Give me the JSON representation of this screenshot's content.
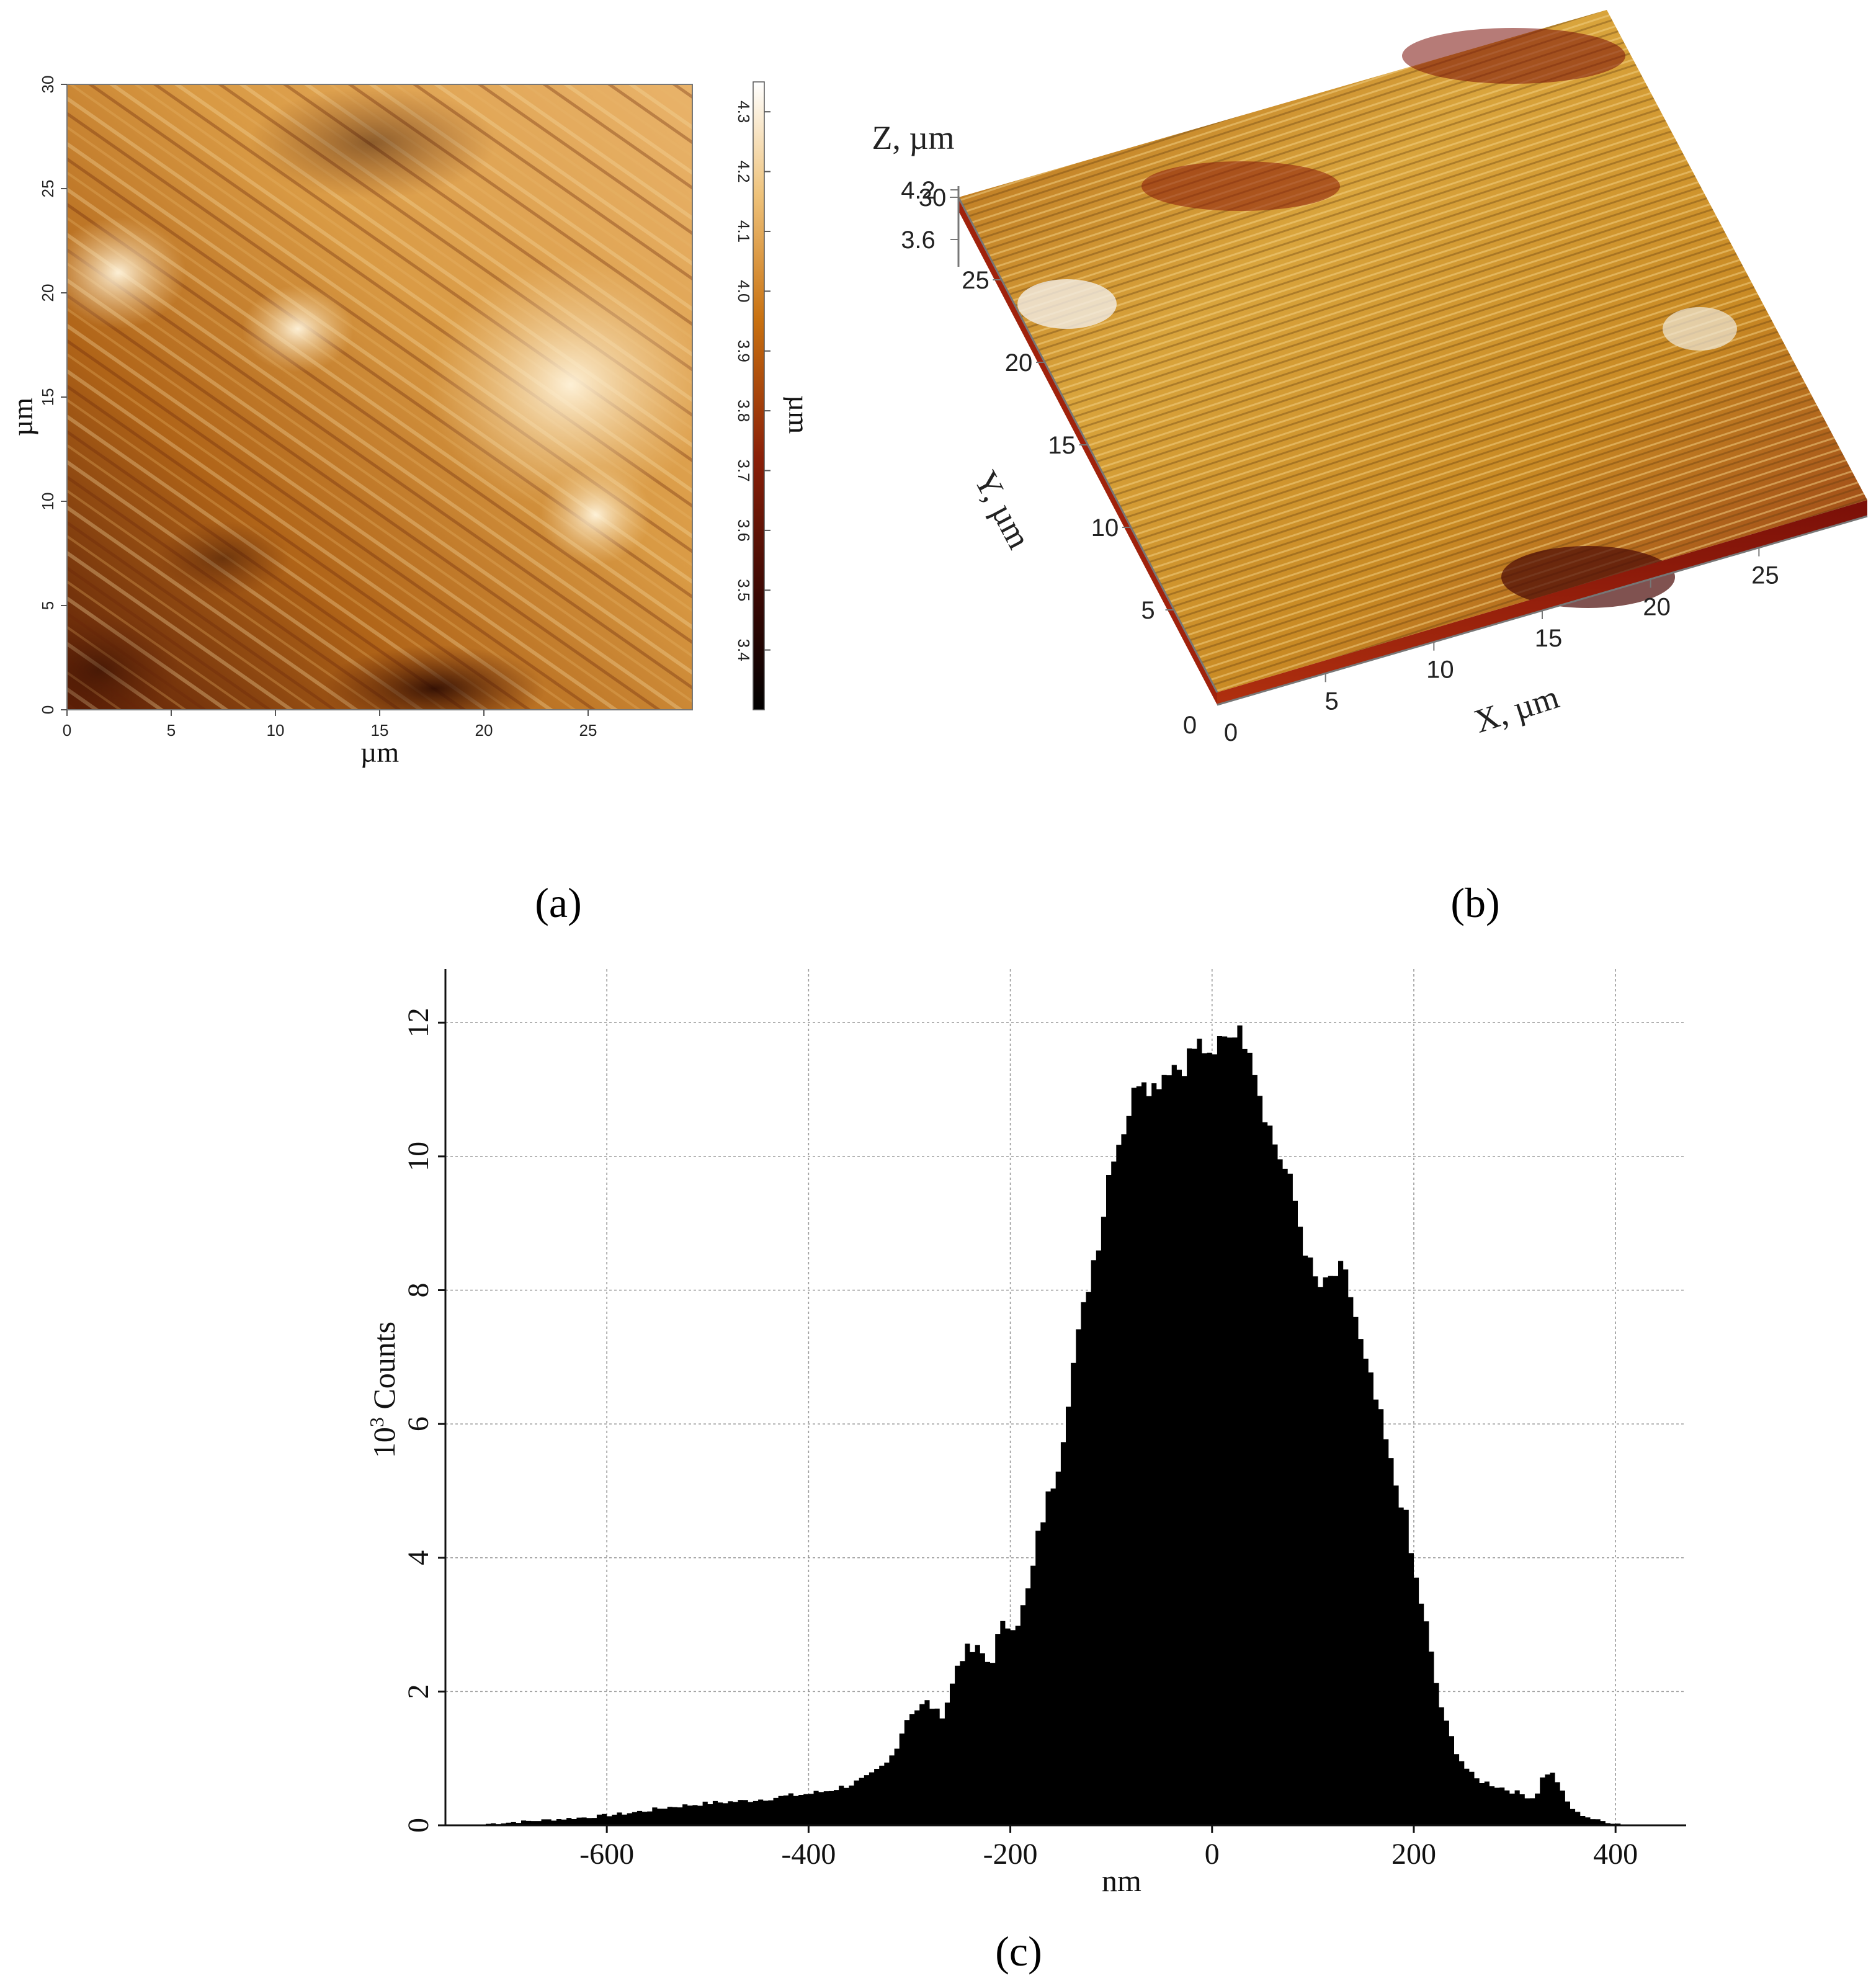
{
  "chart_data": [
    {
      "panel": "a",
      "type": "heatmap",
      "title": "",
      "xlabel": "µm",
      "ylabel": "µm",
      "x_ticks": [
        "0",
        "5",
        "10",
        "15",
        "20",
        "25"
      ],
      "y_ticks": [
        "0",
        "5",
        "10",
        "15",
        "20",
        "25",
        "30"
      ],
      "xlim": [
        0,
        30
      ],
      "ylim": [
        0,
        30
      ],
      "colorbar": {
        "label": "µm",
        "ticks": [
          "3.4",
          "3.5",
          "3.6",
          "3.7",
          "3.8",
          "3.9",
          "4.0",
          "4.1",
          "4.2",
          "4.3"
        ],
        "range": [
          3.3,
          4.35
        ],
        "colors": [
          "#000000",
          "#7a1a06",
          "#b8590c",
          "#e0a050",
          "#fff3d6",
          "#ffffff"
        ]
      },
      "colors": {
        "low": "#2a0a02",
        "mid": "#b86a1c",
        "high": "#fbe6c0"
      }
    },
    {
      "panel": "b",
      "type": "surface",
      "title": "",
      "xlabel": "X, µm",
      "ylabel": "Y, µm",
      "zlabel": "Z, µm",
      "x_ticks": [
        "0",
        "5",
        "10",
        "15",
        "20",
        "25"
      ],
      "y_ticks": [
        "5",
        "10",
        "15",
        "20",
        "25",
        "30"
      ],
      "z_ticks": [
        "3.6",
        "4.2"
      ],
      "origin_label": "0",
      "colors": {
        "low": "#7a0f08",
        "mid": "#c98a1e",
        "high": "#f5d889"
      }
    },
    {
      "panel": "c",
      "type": "bar",
      "title": "",
      "xlabel": "nm",
      "ylabel_base": "10",
      "ylabel_exp": "3",
      "ylabel_rest": " Counts",
      "x_ticks": [
        "-600",
        "-400",
        "-200",
        "0",
        "200",
        "400"
      ],
      "y_ticks": [
        "0",
        "2",
        "4",
        "6",
        "8",
        "10",
        "12"
      ],
      "xlim": [
        -760,
        470
      ],
      "ylim": [
        0,
        12.8
      ],
      "grid": true,
      "bin_width_nm": 5,
      "x": [
        -720,
        -700,
        -680,
        -660,
        -640,
        -620,
        -600,
        -580,
        -560,
        -540,
        -520,
        -500,
        -480,
        -460,
        -440,
        -420,
        -400,
        -380,
        -360,
        -340,
        -320,
        -310,
        -300,
        -290,
        -280,
        -270,
        -260,
        -250,
        -240,
        -230,
        -220,
        -210,
        -200,
        -190,
        -180,
        -170,
        -160,
        -150,
        -140,
        -130,
        -120,
        -110,
        -100,
        -90,
        -80,
        -70,
        -60,
        -50,
        -40,
        -30,
        -20,
        -10,
        0,
        10,
        20,
        25,
        30,
        35,
        40,
        50,
        60,
        70,
        80,
        90,
        100,
        110,
        120,
        130,
        140,
        150,
        160,
        170,
        180,
        190,
        200,
        210,
        220,
        230,
        240,
        250,
        260,
        270,
        280,
        290,
        300,
        310,
        320,
        330,
        340,
        350,
        360,
        380,
        400,
        420
      ],
      "values": [
        0.02,
        0.04,
        0.06,
        0.08,
        0.1,
        0.12,
        0.15,
        0.18,
        0.22,
        0.27,
        0.3,
        0.33,
        0.35,
        0.37,
        0.4,
        0.44,
        0.47,
        0.52,
        0.6,
        0.72,
        0.95,
        1.3,
        1.7,
        1.75,
        1.85,
        1.6,
        1.95,
        2.55,
        2.6,
        2.6,
        2.4,
        2.9,
        3.05,
        3.1,
        3.6,
        4.5,
        5.0,
        5.6,
        6.7,
        7.5,
        8.3,
        8.9,
        10.0,
        10.3,
        10.8,
        11.3,
        11.0,
        11.2,
        11.4,
        11.3,
        11.6,
        11.7,
        11.3,
        11.9,
        11.8,
        12.05,
        11.6,
        11.9,
        11.5,
        10.8,
        10.3,
        9.9,
        9.5,
        8.8,
        8.2,
        8.0,
        8.2,
        8.3,
        7.8,
        7.0,
        6.5,
        5.9,
        5.2,
        4.8,
        3.8,
        3.2,
        2.3,
        1.6,
        1.2,
        0.9,
        0.7,
        0.65,
        0.6,
        0.55,
        0.5,
        0.45,
        0.4,
        0.8,
        0.75,
        0.4,
        0.2,
        0.08,
        0.03,
        0.0
      ]
    }
  ],
  "panel_labels": {
    "a": "(a)",
    "b": "(b)",
    "c": "(c)"
  }
}
